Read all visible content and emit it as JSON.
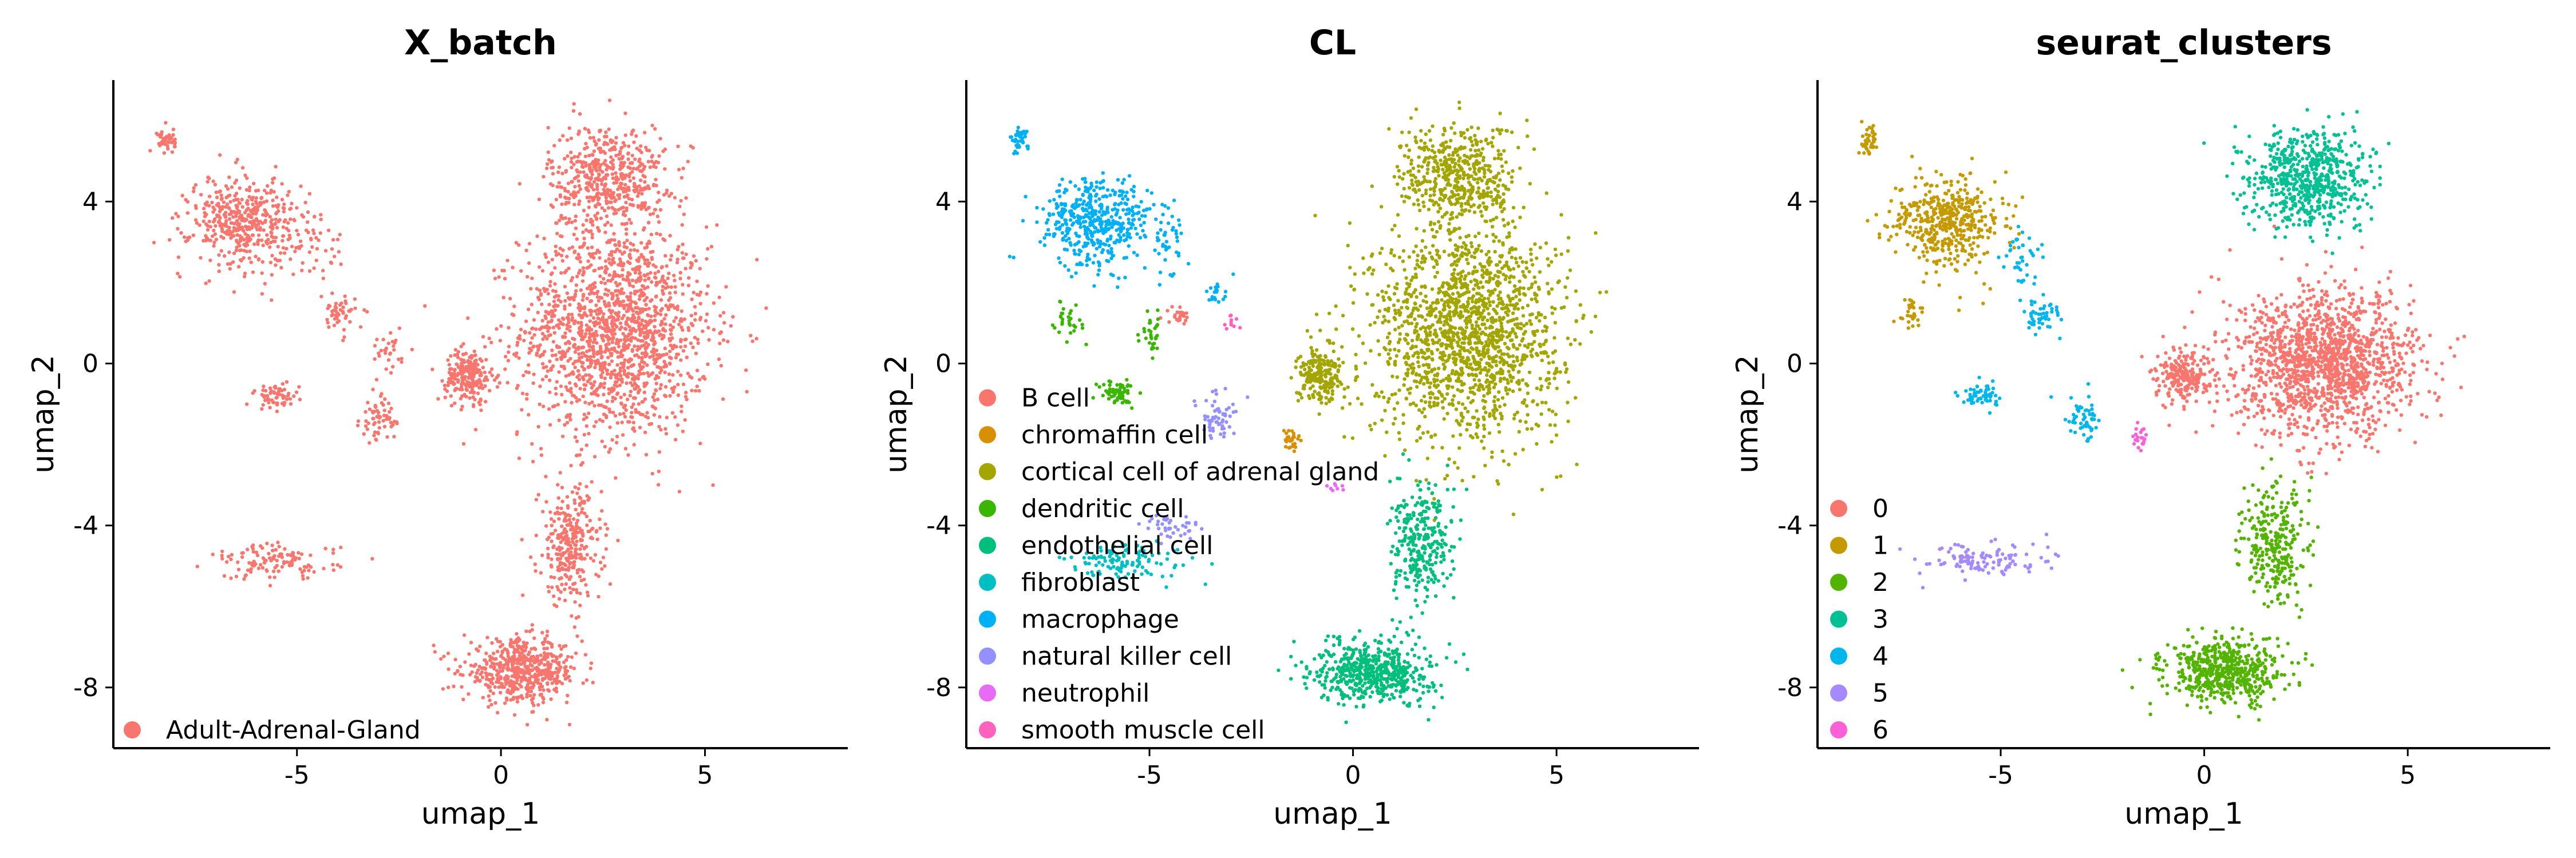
{
  "chart_data": [
    {
      "type": "scatter",
      "title": "X_batch",
      "xlabel": "umap_1",
      "ylabel": "umap_2",
      "xlim": [
        -9.5,
        8.5
      ],
      "ylim": [
        -9.5,
        7.0
      ],
      "xticks": [
        "-5",
        "0",
        "5"
      ],
      "yticks": [
        "4",
        "0",
        "-4",
        "-8"
      ],
      "legend_position": "bottom-left (inside plot)",
      "grid": false,
      "series": [
        {
          "name": "Adult-Adrenal-Gland",
          "color": "#F8766D",
          "clusters": [
            {
              "center": [
                2.8,
                0.8
              ],
              "spread": [
                2.1,
                2.4
              ],
              "n": 1600
            },
            {
              "center": [
                2.6,
                4.6
              ],
              "spread": [
                1.3,
                1.2
              ],
              "n": 500
            },
            {
              "center": [
                -0.8,
                -0.3
              ],
              "spread": [
                0.5,
                0.6
              ],
              "n": 220
            },
            {
              "center": [
                1.7,
                -4.5
              ],
              "spread": [
                0.7,
                1.3
              ],
              "n": 300
            },
            {
              "center": [
                0.5,
                -7.6
              ],
              "spread": [
                1.3,
                0.7
              ],
              "n": 560
            },
            {
              "center": [
                -6.3,
                3.5
              ],
              "spread": [
                1.2,
                1.0
              ],
              "n": 450
            },
            {
              "center": [
                -8.2,
                5.5
              ],
              "spread": [
                0.2,
                0.3
              ],
              "n": 40
            },
            {
              "center": [
                -5.5,
                -4.9
              ],
              "spread": [
                1.4,
                0.4
              ],
              "n": 120
            },
            {
              "center": [
                -5.5,
                -0.8
              ],
              "spread": [
                0.5,
                0.3
              ],
              "n": 60
            },
            {
              "center": [
                -3.0,
                -1.4
              ],
              "spread": [
                0.4,
                0.5
              ],
              "n": 60
            },
            {
              "center": [
                -4.0,
                1.2
              ],
              "spread": [
                0.4,
                0.4
              ],
              "n": 50
            },
            {
              "center": [
                -2.7,
                0.3
              ],
              "spread": [
                0.5,
                0.5
              ],
              "n": 30
            },
            {
              "center": [
                -4.5,
                3.0
              ],
              "spread": [
                0.6,
                0.8
              ],
              "n": 40
            }
          ]
        }
      ]
    },
    {
      "type": "scatter",
      "title": "CL",
      "xlabel": "umap_1",
      "ylabel": "umap_2",
      "xlim": [
        -9.5,
        8.5
      ],
      "ylim": [
        -9.5,
        7.0
      ],
      "xticks": [
        "-5",
        "0",
        "5"
      ],
      "yticks": [
        "4",
        "0",
        "-4",
        "-8"
      ],
      "legend_position": "left (inside plot)",
      "grid": false,
      "series": [
        {
          "name": "B cell",
          "color": "#F8766D",
          "clusters": [
            {
              "center": [
                -4.3,
                1.2
              ],
              "spread": [
                0.3,
                0.2
              ],
              "n": 25
            }
          ]
        },
        {
          "name": "chromaffin cell",
          "color": "#D89000",
          "clusters": [
            {
              "center": [
                -1.5,
                -1.9
              ],
              "spread": [
                0.2,
                0.3
              ],
              "n": 30
            }
          ]
        },
        {
          "name": "cortical cell of adrenal gland",
          "color": "#A3A500",
          "clusters": [
            {
              "center": [
                2.8,
                0.8
              ],
              "spread": [
                2.1,
                2.4
              ],
              "n": 1600
            },
            {
              "center": [
                2.6,
                4.6
              ],
              "spread": [
                1.3,
                1.2
              ],
              "n": 500
            },
            {
              "center": [
                -0.8,
                -0.3
              ],
              "spread": [
                0.5,
                0.6
              ],
              "n": 220
            }
          ]
        },
        {
          "name": "dendritic cell",
          "color": "#39B600",
          "clusters": [
            {
              "center": [
                -5.8,
                -0.7
              ],
              "spread": [
                0.4,
                0.3
              ],
              "n": 60
            },
            {
              "center": [
                -7.0,
                1.1
              ],
              "spread": [
                0.3,
                0.4
              ],
              "n": 30
            },
            {
              "center": [
                -5.0,
                0.7
              ],
              "spread": [
                0.3,
                0.4
              ],
              "n": 30
            }
          ]
        },
        {
          "name": "endothelial cell",
          "color": "#00BF7D",
          "clusters": [
            {
              "center": [
                1.7,
                -4.5
              ],
              "spread": [
                0.7,
                1.3
              ],
              "n": 300
            },
            {
              "center": [
                0.5,
                -7.6
              ],
              "spread": [
                1.3,
                0.7
              ],
              "n": 560
            }
          ]
        },
        {
          "name": "fibroblast",
          "color": "#00BFC4",
          "clusters": [
            {
              "center": [
                -5.5,
                -4.9
              ],
              "spread": [
                1.4,
                0.4
              ],
              "n": 120
            }
          ]
        },
        {
          "name": "macrophage",
          "color": "#00B0F6",
          "clusters": [
            {
              "center": [
                -6.3,
                3.5
              ],
              "spread": [
                1.2,
                1.0
              ],
              "n": 450
            },
            {
              "center": [
                -8.2,
                5.5
              ],
              "spread": [
                0.2,
                0.3
              ],
              "n": 40
            },
            {
              "center": [
                -4.6,
                3.0
              ],
              "spread": [
                0.5,
                0.8
              ],
              "n": 40
            },
            {
              "center": [
                -3.4,
                1.8
              ],
              "spread": [
                0.3,
                0.3
              ],
              "n": 20
            }
          ]
        },
        {
          "name": "natural killer cell",
          "color": "#9590FF",
          "clusters": [
            {
              "center": [
                -3.3,
                -1.3
              ],
              "spread": [
                0.4,
                0.5
              ],
              "n": 60
            },
            {
              "center": [
                -4.5,
                -4.1
              ],
              "spread": [
                0.8,
                0.3
              ],
              "n": 40
            }
          ]
        },
        {
          "name": "neutrophil",
          "color": "#E76BF3",
          "clusters": [
            {
              "center": [
                -0.4,
                -3.0
              ],
              "spread": [
                0.2,
                0.2
              ],
              "n": 8
            }
          ]
        },
        {
          "name": "smooth muscle cell",
          "color": "#FF62BC",
          "clusters": [
            {
              "center": [
                -3.0,
                1.0
              ],
              "spread": [
                0.2,
                0.2
              ],
              "n": 10
            }
          ]
        }
      ]
    },
    {
      "type": "scatter",
      "title": "seurat_clusters",
      "xlabel": "umap_1",
      "ylabel": "umap_2",
      "xlim": [
        -9.5,
        8.5
      ],
      "ylim": [
        -9.5,
        7.0
      ],
      "xticks": [
        "-5",
        "0",
        "5"
      ],
      "yticks": [
        "4",
        "0",
        "-4",
        "-8"
      ],
      "legend_position": "bottom-left (inside plot)",
      "grid": false,
      "series": [
        {
          "name": "0",
          "color": "#F8766D",
          "clusters": [
            {
              "center": [
                3.0,
                0.0
              ],
              "spread": [
                2.0,
                1.6
              ],
              "n": 1500
            },
            {
              "center": [
                -0.5,
                -0.3
              ],
              "spread": [
                0.6,
                0.6
              ],
              "n": 220
            }
          ]
        },
        {
          "name": "1",
          "color": "#C49A00",
          "clusters": [
            {
              "center": [
                -6.3,
                3.5
              ],
              "spread": [
                1.2,
                1.0
              ],
              "n": 450
            },
            {
              "center": [
                -8.2,
                5.5
              ],
              "spread": [
                0.2,
                0.3
              ],
              "n": 40
            },
            {
              "center": [
                -7.2,
                1.3
              ],
              "spread": [
                0.3,
                0.4
              ],
              "n": 30
            }
          ]
        },
        {
          "name": "2",
          "color": "#53B400",
          "clusters": [
            {
              "center": [
                1.7,
                -4.5
              ],
              "spread": [
                0.7,
                1.3
              ],
              "n": 300
            },
            {
              "center": [
                0.5,
                -7.6
              ],
              "spread": [
                1.3,
                0.7
              ],
              "n": 560
            }
          ]
        },
        {
          "name": "3",
          "color": "#00C094",
          "clusters": [
            {
              "center": [
                2.6,
                4.6
              ],
              "spread": [
                1.3,
                1.1
              ],
              "n": 650
            }
          ]
        },
        {
          "name": "4",
          "color": "#00B6EB",
          "clusters": [
            {
              "center": [
                -5.5,
                -0.8
              ],
              "spread": [
                0.5,
                0.3
              ],
              "n": 60
            },
            {
              "center": [
                -3.0,
                -1.4
              ],
              "spread": [
                0.4,
                0.5
              ],
              "n": 60
            },
            {
              "center": [
                -4.0,
                1.2
              ],
              "spread": [
                0.4,
                0.4
              ],
              "n": 50
            },
            {
              "center": [
                -4.5,
                2.5
              ],
              "spread": [
                0.5,
                0.9
              ],
              "n": 40
            }
          ]
        },
        {
          "name": "5",
          "color": "#A58AFF",
          "clusters": [
            {
              "center": [
                -5.5,
                -4.9
              ],
              "spread": [
                1.4,
                0.4
              ],
              "n": 120
            }
          ]
        },
        {
          "name": "6",
          "color": "#FB61D7",
          "clusters": [
            {
              "center": [
                -1.6,
                -1.8
              ],
              "spread": [
                0.15,
                0.3
              ],
              "n": 20
            }
          ]
        }
      ]
    }
  ]
}
